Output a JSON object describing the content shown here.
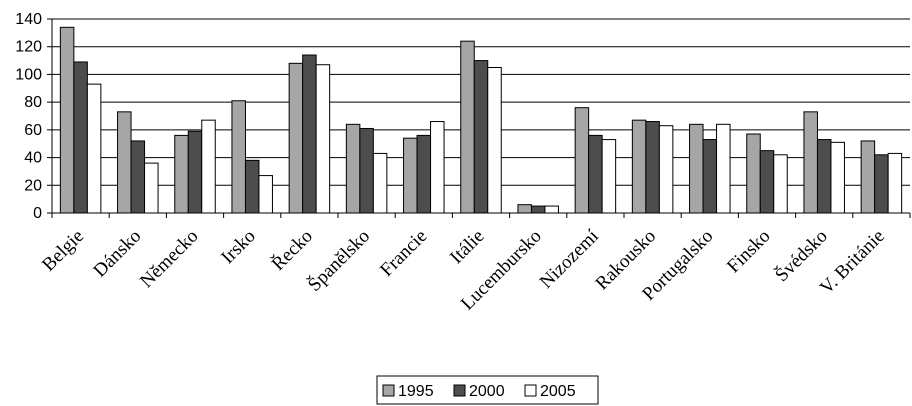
{
  "chart_data": {
    "type": "bar",
    "categories": [
      "Belgie",
      "Dánsko",
      "Německo",
      "Irsko",
      "Řecko",
      "Španělsko",
      "Francie",
      "Itálie",
      "Lucembursko",
      "Nizozemí",
      "Rakousko",
      "Portugalsko",
      "Finsko",
      "Švédsko",
      "V. Británie"
    ],
    "series": [
      {
        "name": "1995",
        "color": "#a6a6a6",
        "values": [
          134,
          73,
          56,
          81,
          108,
          64,
          54,
          124,
          6,
          76,
          67,
          64,
          57,
          73,
          52
        ]
      },
      {
        "name": "2000",
        "color": "#4d4d4d",
        "values": [
          109,
          52,
          59,
          38,
          114,
          61,
          56,
          110,
          5,
          56,
          66,
          53,
          45,
          53,
          42
        ]
      },
      {
        "name": "2005",
        "color": "#ffffff",
        "values": [
          93,
          36,
          67,
          27,
          107,
          43,
          66,
          105,
          5,
          53,
          63,
          64,
          42,
          51,
          43
        ]
      }
    ],
    "ylim": [
      0,
      140
    ],
    "yticks": [
      "0",
      "20",
      "40",
      "60",
      "80",
      "100",
      "120",
      "140"
    ],
    "grid": true,
    "legend": "bottom",
    "xlabel": "",
    "ylabel": "",
    "title": ""
  }
}
